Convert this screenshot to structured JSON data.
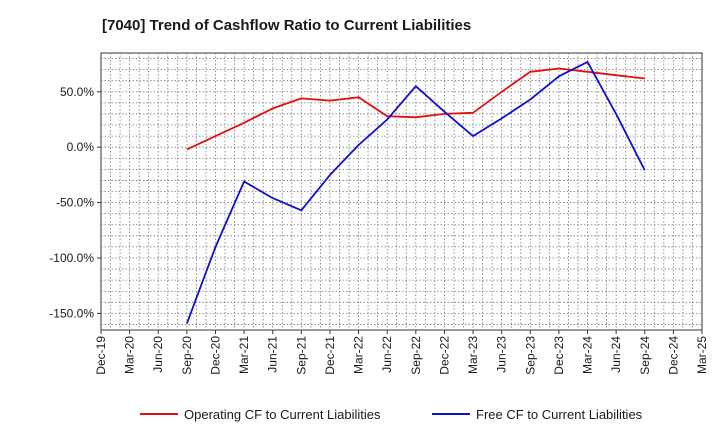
{
  "chart_data": {
    "type": "line",
    "title": "[7040]  Trend of Cashflow Ratio to Current Liabilities",
    "xlabel": "",
    "ylabel": "",
    "x_ticks": [
      "Dec-19",
      "Mar-20",
      "Jun-20",
      "Sep-20",
      "Dec-20",
      "Mar-21",
      "Jun-21",
      "Sep-21",
      "Dec-21",
      "Mar-22",
      "Jun-22",
      "Sep-22",
      "Dec-22",
      "Mar-23",
      "Jun-23",
      "Sep-23",
      "Dec-23",
      "Mar-24",
      "Jun-24",
      "Sep-24",
      "Dec-24",
      "Mar-25"
    ],
    "y_ticks": [
      50,
      0,
      -50,
      -100,
      -150
    ],
    "y_tick_labels": [
      "50.0%",
      "0.0%",
      "-50.0%",
      "-100.0%",
      "-150.0%"
    ],
    "ylim": [
      -165,
      85
    ],
    "grid": true,
    "legend_position": "bottom",
    "series": [
      {
        "name": "Operating CF to Current Liabilities",
        "color": "#e01010",
        "x": [
          "Sep-20",
          "Dec-20",
          "Mar-21",
          "Jun-21",
          "Sep-21",
          "Dec-21",
          "Mar-22",
          "Jun-22",
          "Sep-22",
          "Dec-22",
          "Mar-23",
          "Jun-23",
          "Sep-23",
          "Dec-23",
          "Mar-24",
          "Jun-24",
          "Sep-24"
        ],
        "values": [
          -2,
          10,
          22,
          35,
          44,
          42,
          45,
          28,
          27,
          30,
          31,
          50,
          68,
          71,
          68,
          65,
          62
        ]
      },
      {
        "name": "Free CF to Current Liabilities",
        "color": "#1010d0",
        "x": [
          "Sep-20",
          "Dec-20",
          "Mar-21",
          "Jun-21",
          "Sep-21",
          "Dec-21",
          "Mar-22",
          "Jun-22",
          "Sep-22",
          "Dec-22",
          "Mar-23",
          "Jun-23",
          "Sep-23",
          "Dec-23",
          "Mar-24",
          "Jun-24",
          "Sep-24"
        ],
        "values": [
          -159,
          -90,
          -31,
          -46,
          -57,
          -25,
          2,
          25,
          55,
          32,
          10,
          26,
          43,
          64,
          77,
          30,
          -21
        ]
      }
    ]
  }
}
